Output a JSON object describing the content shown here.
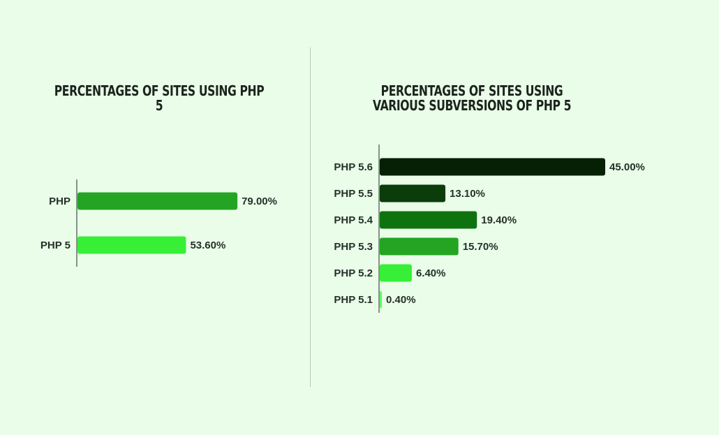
{
  "chart_data": [
    {
      "type": "bar",
      "orientation": "horizontal",
      "title": "PERCENTAGES OF SITES USING PHP 5",
      "categories": [
        "PHP",
        "PHP 5"
      ],
      "values": [
        79.0,
        53.6
      ],
      "value_labels": [
        "79.00%",
        "53.60%"
      ],
      "colors": [
        "#23a523",
        "#36ef36"
      ],
      "xlim": [
        0,
        100
      ],
      "grid": false,
      "legend": "none"
    },
    {
      "type": "bar",
      "orientation": "horizontal",
      "title": "PERCENTAGES OF SITES USING VARIOUS SUBVERSIONS OF PHP 5",
      "categories": [
        "PHP 5.6",
        "PHP 5.5",
        "PHP 5.4",
        "PHP 5.3",
        "PHP 5.2",
        "PHP 5.1"
      ],
      "values": [
        45.0,
        13.1,
        19.4,
        15.7,
        6.4,
        0.4
      ],
      "value_labels": [
        "45.00%",
        "13.10%",
        "19.40%",
        "15.70%",
        "6.40%",
        "0.40%"
      ],
      "colors": [
        "#052005",
        "#0b3d0b",
        "#0e730e",
        "#23a523",
        "#36ef36",
        "#5cfc5c"
      ],
      "xlim": [
        0,
        45
      ],
      "grid": false,
      "legend": "none"
    }
  ]
}
